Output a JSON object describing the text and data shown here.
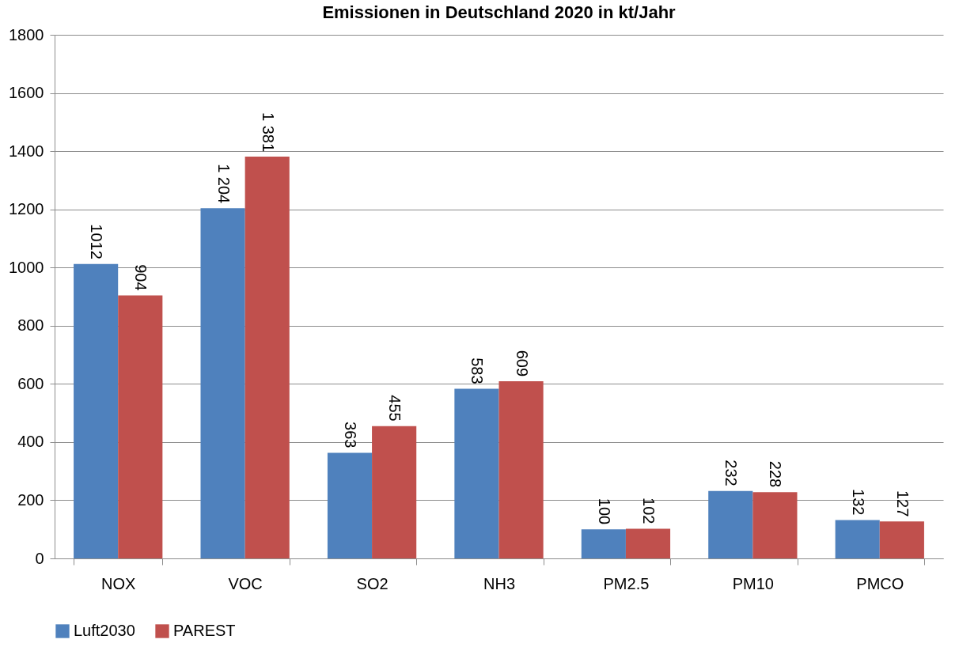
{
  "chart_data": {
    "type": "bar",
    "title": "Emissionen in Deutschland 2020 in kt/Jahr",
    "categories": [
      "NOX",
      "VOC",
      "SO2",
      "NH3",
      "PM2.5",
      "PM10",
      "PMCO"
    ],
    "series": [
      {
        "name": "Luft2030",
        "color": "#4f81bd",
        "values": [
          1012,
          1204,
          363,
          583,
          100,
          232,
          132
        ],
        "value_labels": [
          "1012",
          "1 204",
          "363",
          "583",
          "100",
          "232",
          "132"
        ]
      },
      {
        "name": "PAREST",
        "color": "#c0504d",
        "values": [
          904,
          1381,
          455,
          609,
          102,
          228,
          127
        ],
        "value_labels": [
          "904",
          "1 381",
          "455",
          "609",
          "102",
          "228",
          "127"
        ]
      }
    ],
    "ylim": [
      0,
      1800
    ],
    "yticks": [
      0,
      200,
      400,
      600,
      800,
      1000,
      1200,
      1400,
      1600,
      1800
    ],
    "grid": "y",
    "legend": "bottom"
  }
}
